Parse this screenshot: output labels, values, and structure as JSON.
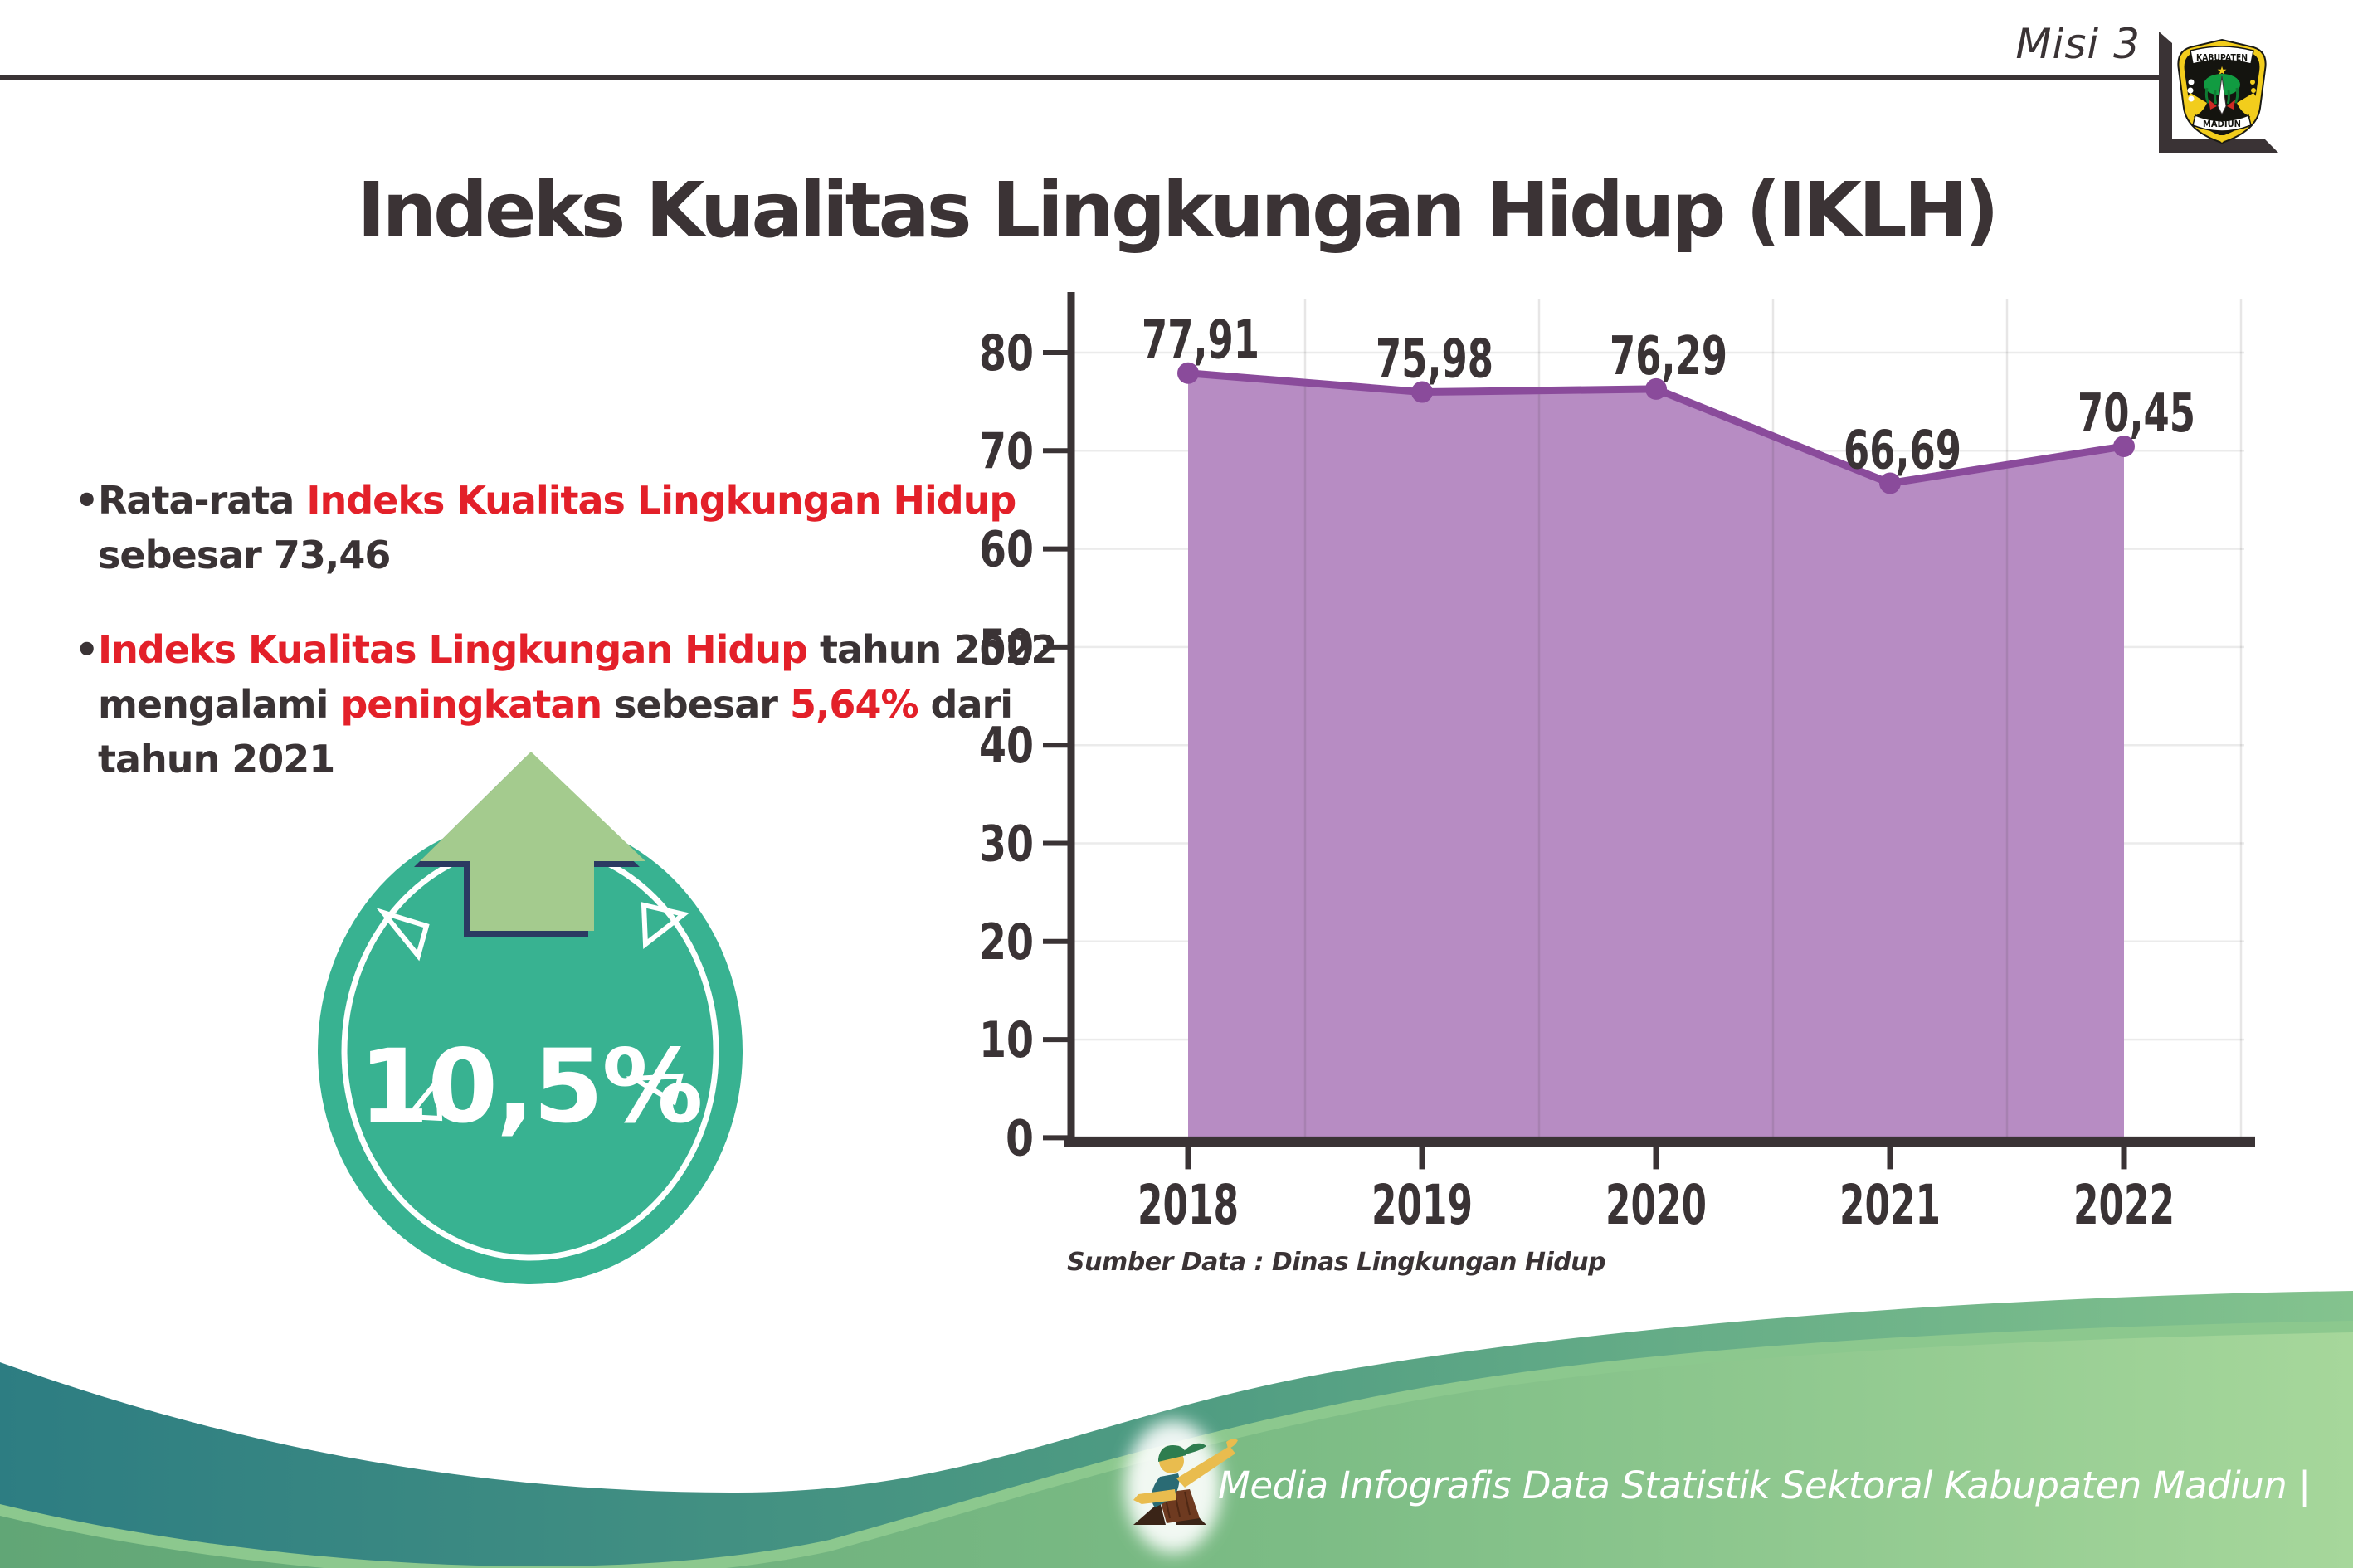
{
  "header": {
    "misi": "Misi 3",
    "title": "Indeks Kualitas Lingkungan Hidup (IKLH)"
  },
  "logo": {
    "kabupaten": "KABUPATEN",
    "madiun": "MADIUN"
  },
  "bullets": [
    {
      "marker": "•",
      "lines": [
        [
          {
            "t": "Rata-rata ",
            "c": "dark"
          },
          {
            "t": "Indeks Kualitas Lingkungan Hidup",
            "c": "red"
          }
        ],
        [
          {
            "t": "sebesar 73,46",
            "c": "dark"
          }
        ]
      ]
    },
    {
      "marker": "•",
      "lines": [
        [
          {
            "t": "Indeks Kualitas Lingkungan Hidup",
            "c": "red"
          },
          {
            "t": " tahun 2022",
            "c": "dark"
          }
        ],
        [
          {
            "t": "mengalami ",
            "c": "dark"
          },
          {
            "t": "peningkatan",
            "c": "red"
          },
          {
            "t": " sebesar ",
            "c": "dark"
          },
          {
            "t": "5,64%",
            "c": "red"
          },
          {
            "t": " dari",
            "c": "dark"
          }
        ],
        [
          {
            "t": "tahun 2021",
            "c": "dark"
          }
        ]
      ]
    }
  ],
  "badge": {
    "value": "10,5%",
    "circle_color": "#38b291",
    "arrow_color": "#a4cb8e",
    "arrow_outline": "#2b3a62"
  },
  "chart_data": {
    "type": "area",
    "categories": [
      "2018",
      "2019",
      "2020",
      "2021",
      "2022"
    ],
    "values": [
      77.91,
      75.98,
      76.29,
      66.69,
      70.45
    ],
    "point_labels": [
      "77,91",
      "75,98",
      "76,29",
      "66,69",
      "70,45"
    ],
    "title": "",
    "xlabel": "",
    "ylabel": "",
    "ylim": [
      0,
      80
    ],
    "ytick_step": 10,
    "grid": true,
    "legend": false,
    "colors": {
      "line": "#8a4b9b",
      "fill": "#b78cc3",
      "axis": "#3a3335",
      "label": "#3a3335",
      "grid": "#ebebeb",
      "vgrid": "rgba(58,51,53,0.12)"
    }
  },
  "source": {
    "text": "Sumber Data : Dinas Lingkungan Hidup"
  },
  "footer": {
    "text": "Media Infografis Data Statistik Sektoral Kabupaten Madiun |"
  },
  "colors": {
    "red_text": "#e32029",
    "dark_text": "#3a3335",
    "footer_teal": "#2d7d82",
    "footer_green": "#7cbc85",
    "footer_light_green": "#a6d79b",
    "footer_rim": "#8cc88e"
  }
}
